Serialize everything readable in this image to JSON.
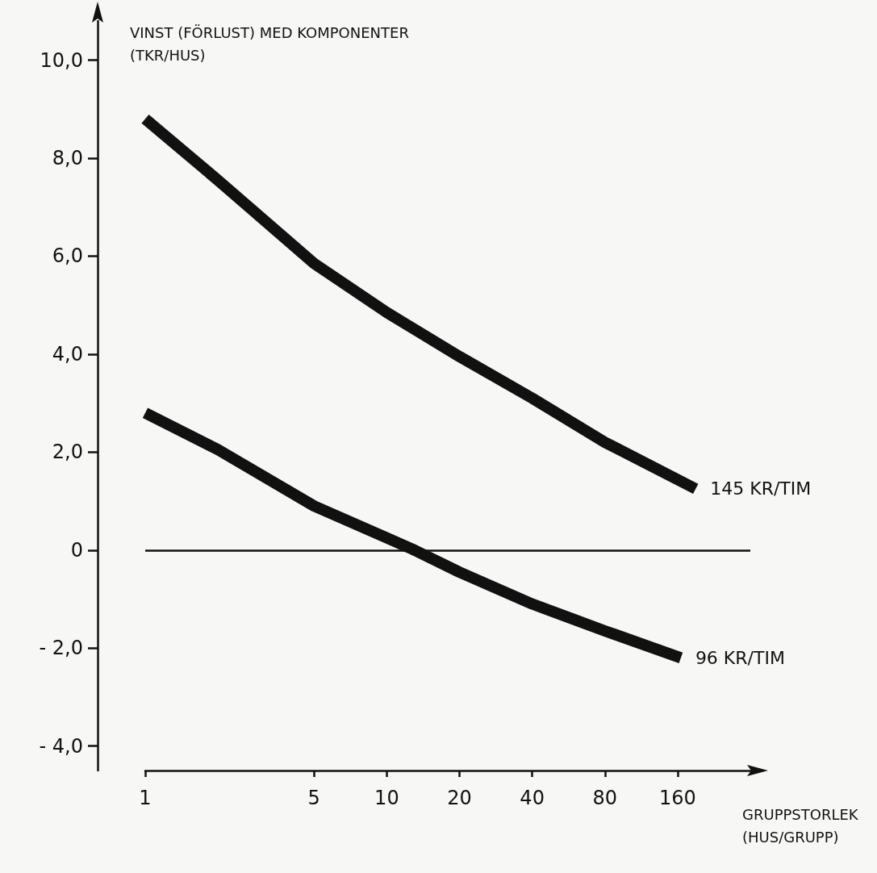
{
  "chart_data": {
    "type": "line",
    "ylabel": "VINST (FÖRLUST) MED KOMPONENTER\n(TKR/HUS)",
    "xlabel": "GRUPPSTORLEK\n(HUS/GRUPP)",
    "series": [
      {
        "name": "145 KR/TIM",
        "color": "#111111",
        "x": [
          1,
          2,
          5,
          10,
          20,
          40,
          80,
          190
        ],
        "values": [
          8.8,
          7.55,
          5.85,
          4.85,
          3.95,
          3.1,
          2.2,
          1.25
        ]
      },
      {
        "name": "96 KR/TIM",
        "color": "#111111",
        "x": [
          1,
          2,
          5,
          10,
          13,
          20,
          40,
          80,
          165
        ],
        "values": [
          2.8,
          2.05,
          0.9,
          0.25,
          0,
          -0.45,
          -1.1,
          -1.65,
          -2.2
        ]
      }
    ],
    "log": "x",
    "xlim": [
      1,
      320
    ],
    "xticks": [
      1,
      5,
      10,
      20,
      40,
      80,
      160
    ],
    "ylim": [
      -4.5,
      10.8
    ],
    "yticks": [
      {
        "value": -4,
        "label": "- 4,0"
      },
      {
        "value": -2,
        "label": "- 2,0"
      },
      0,
      {
        "value": 2,
        "label": "2,0"
      },
      {
        "value": 4,
        "label": "4,0"
      },
      {
        "value": 6,
        "label": "6,0"
      },
      {
        "value": 8,
        "label": "8,0"
      },
      {
        "value": 10,
        "label": "10,0"
      }
    ],
    "ref_lines": [
      {
        "axis": "y",
        "value": 0,
        "color": "#111111"
      }
    ],
    "grid": false,
    "legend": false,
    "marker": "none",
    "line_style": "solid"
  }
}
